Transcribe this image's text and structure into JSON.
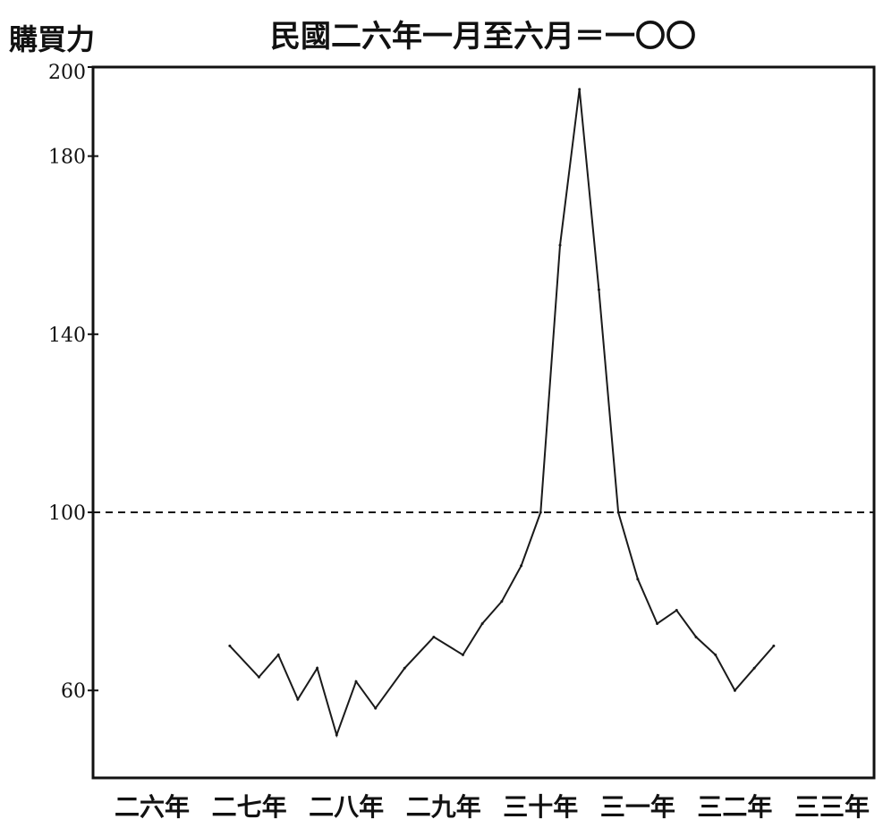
{
  "chart_data": {
    "type": "line",
    "title": "民國二六年一月至六月＝一〇〇",
    "ylabel": "購買力",
    "xlabel": "",
    "ylim": [
      40,
      200
    ],
    "yticks": [
      "200",
      "180",
      "140",
      "100",
      "60"
    ],
    "categories": [
      "二六年",
      "二七年",
      "二八年",
      "二九年",
      "三十年",
      "三一年",
      "三二年",
      "三三年"
    ],
    "series": [
      {
        "x": [
          26.8,
          27.1,
          27.3,
          27.5,
          27.7,
          27.9,
          28.1,
          28.3,
          28.6,
          28.9,
          29.2,
          29.4,
          29.6,
          29.8,
          30.0,
          30.2,
          30.4,
          30.6,
          30.8,
          31.0,
          31.2,
          31.4,
          31.6,
          31.8,
          32.0,
          32.2,
          32.4
        ],
        "values": [
          70,
          63,
          68,
          58,
          65,
          50,
          62,
          56,
          65,
          72,
          68,
          75,
          80,
          88,
          100,
          160,
          195,
          150,
          100,
          85,
          75,
          78,
          72,
          68,
          60,
          65,
          70
        ]
      }
    ],
    "grid": false,
    "colors": {
      "axes": "#111111",
      "line": "#1a1a1a"
    }
  }
}
